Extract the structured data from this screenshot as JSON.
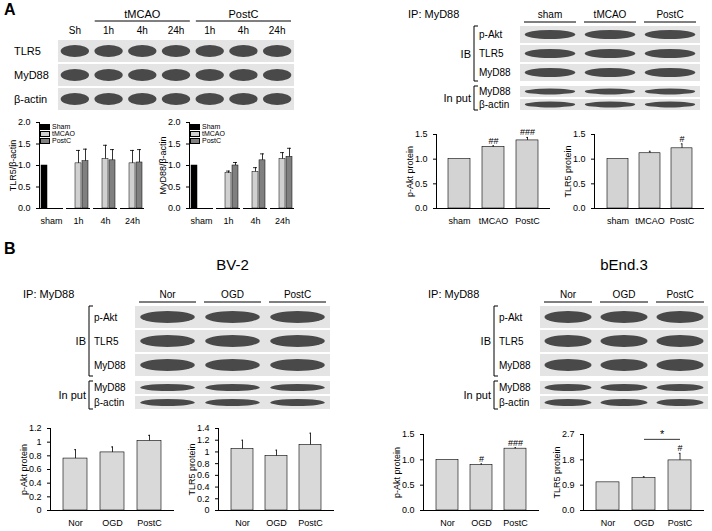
{
  "panel_labels": [
    "A",
    "B"
  ],
  "blots": [
    {
      "header": {
        "single": [
          "Sh"
        ],
        "groups": [
          {
            "label": "tMCAO",
            "lanes": [
              "1h",
              "4h",
              "24h"
            ]
          },
          {
            "label": "PostC",
            "lanes": [
              "1h",
              "4h",
              "24h"
            ]
          }
        ]
      },
      "rows": [
        "TLR5",
        "MyD88",
        "β-actin"
      ]
    },
    {
      "ip": "IP: MyD88",
      "lanes": [
        "sham",
        "tMCAO",
        "PostC"
      ],
      "ib_label": "IB",
      "ib_rows": [
        "p-Akt",
        "TLR5",
        "MyD88"
      ],
      "input_label": "In put",
      "input_rows": [
        "MyD88",
        "β-actin"
      ]
    },
    {
      "title": "BV-2",
      "ip": "IP: MyD88",
      "lanes": [
        "Nor",
        "OGD",
        "PostC"
      ],
      "ib_label": "IB",
      "ib_rows": [
        "p-Akt",
        "TLR5",
        "MyD88"
      ],
      "input_label": "In put",
      "input_rows": [
        "MyD88",
        "β-actin"
      ]
    },
    {
      "title": "bEnd.3",
      "ip": "IP: MyD88",
      "lanes": [
        "Nor",
        "OGD",
        "PostC"
      ],
      "ib_label": "IB",
      "ib_rows": [
        "p-Akt",
        "TLR5",
        "MyD88"
      ],
      "input_label": "In put",
      "input_rows": [
        "MyD88",
        "β-actin"
      ]
    }
  ],
  "chart_data": [
    {
      "type": "bar",
      "ylabel": "TLR5/β-actin",
      "categories": [
        "sham",
        "1h",
        "4h",
        "24h"
      ],
      "series": [
        {
          "name": "Sham",
          "color": "#000000",
          "values": [
            1.0,
            null,
            null,
            null
          ],
          "errors": [
            null,
            null,
            null,
            null
          ]
        },
        {
          "name": "tMCAO",
          "color": "#d0d0d0",
          "values": [
            null,
            1.05,
            1.15,
            1.05
          ],
          "errors": [
            null,
            0.3,
            0.32,
            0.3
          ]
        },
        {
          "name": "PostC",
          "color": "#808080",
          "values": [
            null,
            1.1,
            1.12,
            1.07
          ],
          "errors": [
            null,
            0.28,
            0.25,
            0.3
          ]
        }
      ],
      "ylim": [
        0,
        2
      ],
      "yticks": [
        {
          "value": 0,
          "label": "0.0"
        },
        {
          "value": 0.5,
          "label": "0.5"
        },
        {
          "value": 1,
          "label": "1.0"
        },
        {
          "value": 1.5,
          "label": "1.5"
        },
        {
          "value": 2,
          "label": "2.0"
        }
      ],
      "legend": "top-left"
    },
    {
      "type": "bar",
      "ylabel": "MyD88/β-actin",
      "categories": [
        "sham",
        "1h",
        "4h",
        "24h"
      ],
      "series": [
        {
          "name": "Sham",
          "color": "#000000",
          "values": [
            1.0,
            null,
            null,
            null
          ],
          "errors": [
            null,
            null,
            null,
            null
          ]
        },
        {
          "name": "tMCAO",
          "color": "#d0d0d0",
          "values": [
            null,
            0.82,
            0.85,
            1.15
          ],
          "errors": [
            null,
            0.05,
            0.1,
            0.15
          ]
        },
        {
          "name": "PostC",
          "color": "#808080",
          "values": [
            null,
            1.0,
            1.12,
            1.2
          ],
          "errors": [
            null,
            0.07,
            0.15,
            0.2
          ]
        }
      ],
      "ylim": [
        0,
        2
      ],
      "yticks": [
        {
          "value": 0,
          "label": "0.0"
        },
        {
          "value": 0.5,
          "label": "0.5"
        },
        {
          "value": 1,
          "label": "1.0"
        },
        {
          "value": 1.5,
          "label": "1.5"
        },
        {
          "value": 2,
          "label": "2.0"
        }
      ],
      "legend": "top-left"
    },
    {
      "type": "bar",
      "ylabel": "p-Akt protein",
      "categories": [
        "sham",
        "tMCAO",
        "PostC"
      ],
      "values": [
        1.0,
        1.25,
        1.38
      ],
      "errors": [
        0,
        0.02,
        0.06
      ],
      "color": "#d3d3d3",
      "ylim": [
        0,
        1.5
      ],
      "yticks": [
        {
          "value": 0,
          "label": "0.0"
        },
        {
          "value": 0.5,
          "label": "0.5"
        },
        {
          "value": 1,
          "label": "1.0"
        },
        {
          "value": 1.5,
          "label": "1.5"
        }
      ],
      "annotations": [
        {
          "category": "tMCAO",
          "text": "##"
        },
        {
          "category": "PostC",
          "text": "###"
        }
      ]
    },
    {
      "type": "bar",
      "ylabel": "TLR5 protein",
      "categories": [
        "sham",
        "tMCAO",
        "PostC"
      ],
      "values": [
        1.0,
        1.12,
        1.22
      ],
      "errors": [
        0,
        0.04,
        0.09
      ],
      "color": "#d3d3d3",
      "ylim": [
        0,
        1.5
      ],
      "yticks": [
        {
          "value": 0,
          "label": "0.0"
        },
        {
          "value": 0.5,
          "label": "0.5"
        },
        {
          "value": 1,
          "label": "1.0"
        },
        {
          "value": 1.5,
          "label": "1.5"
        }
      ],
      "annotations": [
        {
          "category": "PostC",
          "text": "#"
        }
      ]
    },
    {
      "type": "bar",
      "ylabel": "p-Akt protein",
      "categories": [
        "Nor",
        "OGD",
        "PostC"
      ],
      "values": [
        0.76,
        0.85,
        1.02
      ],
      "errors": [
        0.13,
        0.08,
        0.08
      ],
      "color": "#d9d9d9",
      "ylim": [
        0,
        1.2
      ],
      "yticks": [
        0,
        0.2,
        0.4,
        0.6,
        0.8,
        1,
        1.2
      ]
    },
    {
      "type": "bar",
      "ylabel": "TLR5 protein",
      "categories": [
        "Nor",
        "OGD",
        "PostC"
      ],
      "values": [
        1.05,
        0.93,
        1.12
      ],
      "errors": [
        0.15,
        0.1,
        0.2
      ],
      "color": "#d9d9d9",
      "ylim": [
        0,
        1.4
      ],
      "yticks": [
        0,
        0.2,
        0.4,
        0.6,
        0.8,
        1,
        1.2,
        1.4
      ]
    },
    {
      "type": "bar",
      "ylabel": "p-Akt protein",
      "categories": [
        "Nor",
        "OGD",
        "PostC"
      ],
      "values": [
        1.0,
        0.9,
        1.22
      ],
      "errors": [
        0,
        0.02,
        0.02
      ],
      "color": "#d9d9d9",
      "ylim": [
        0,
        1.5
      ],
      "yticks": [
        {
          "value": 0,
          "label": "0.0"
        },
        {
          "value": 0.5,
          "label": "0.5"
        },
        {
          "value": 1,
          "label": "1.0"
        },
        {
          "value": 1.5,
          "label": "1.5"
        }
      ],
      "annotations": [
        {
          "category": "OGD",
          "text": "#"
        },
        {
          "category": "PostC",
          "text": "###"
        }
      ]
    },
    {
      "type": "bar",
      "ylabel": "TLR5 protein",
      "categories": [
        "Nor",
        "OGD",
        "PostC"
      ],
      "values": [
        1.0,
        1.15,
        1.78
      ],
      "errors": [
        0,
        0.05,
        0.25
      ],
      "color": "#d9d9d9",
      "ylim": [
        0,
        2.7
      ],
      "yticks": [
        {
          "value": 0,
          "label": "0.0"
        },
        {
          "value": 0.9,
          "label": "0.9"
        },
        {
          "value": 1.8,
          "label": "1.8"
        },
        {
          "value": 2.7,
          "label": "2.7"
        }
      ],
      "annotations": [
        {
          "category": "PostC",
          "text": "#"
        },
        {
          "from": "OGD",
          "to": "PostC",
          "text": "*"
        }
      ]
    }
  ]
}
